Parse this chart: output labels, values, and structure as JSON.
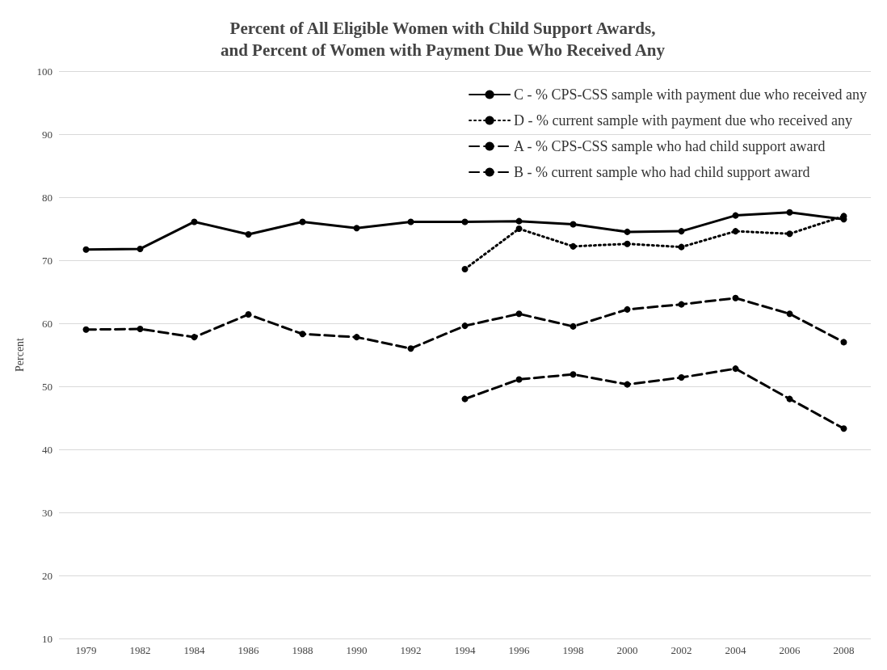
{
  "chart_data": {
    "type": "line",
    "title": "Percent of All Eligible Women with Child Support Awards,\nand Percent of Women with Payment Due Who Received Any",
    "ylabel": "Percent",
    "categories": [
      "1979",
      "1982",
      "1984",
      "1986",
      "1988",
      "1990",
      "1992",
      "1994",
      "1996",
      "1998",
      "2000",
      "2002",
      "2004",
      "2006",
      "2008"
    ],
    "series": [
      {
        "name": "C - % CPS-CSS sample with payment due who received any",
        "color": "#000000",
        "line_style": "solid",
        "values": [
          71.7,
          71.8,
          76.1,
          74.1,
          76.1,
          75.1,
          76.1,
          76.1,
          76.2,
          75.7,
          74.5,
          74.6,
          77.1,
          77.6,
          76.5
        ]
      },
      {
        "name": "D - % current sample with payment due who received any",
        "color": "#000000",
        "line_style": "dotted",
        "values": [
          null,
          null,
          null,
          null,
          null,
          null,
          null,
          68.6,
          75.0,
          72.2,
          72.6,
          72.1,
          74.6,
          74.2,
          77.0
        ]
      },
      {
        "name": "A - % CPS-CSS sample who had child support award",
        "color": "#000000",
        "line_style": "dashed",
        "values": [
          59.0,
          59.1,
          57.8,
          61.4,
          58.3,
          57.8,
          56.0,
          59.6,
          61.5,
          59.5,
          62.2,
          63.0,
          64.0,
          61.5,
          57.0
        ]
      },
      {
        "name": "B - % current sample who had child support award",
        "color": "#000000",
        "line_style": "dashed",
        "values": [
          null,
          null,
          null,
          null,
          null,
          null,
          null,
          48.0,
          51.1,
          51.9,
          50.3,
          51.4,
          52.8,
          48.0,
          43.3
        ]
      }
    ],
    "ylim": [
      10,
      100
    ],
    "yticks": [
      10,
      20,
      30,
      40,
      50,
      60,
      70,
      80,
      90,
      100
    ],
    "grid": "y",
    "legend": "top right",
    "marker": "circle"
  }
}
